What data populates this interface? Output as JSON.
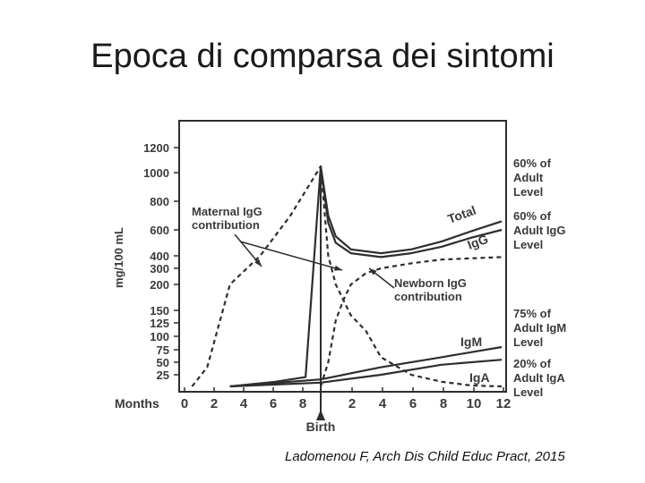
{
  "slide": {
    "title": "Epoca di comparsa dei sintomi",
    "citation": "Ladomenou F, Arch Dis Child Educ Pract, 2015"
  },
  "chart_data": {
    "type": "line",
    "title": "",
    "ylabel": "mg/100 mL",
    "xlabel": "Months",
    "y_ticks": [
      "1200",
      "1000",
      "800",
      "600",
      "400",
      "300",
      "200",
      "150",
      "125",
      "100",
      "75",
      "50",
      "25"
    ],
    "x_tick_labels_prenatal": [
      "0",
      "2",
      "4",
      "6",
      "8"
    ],
    "x_tick_labels_postnatal": [
      "2",
      "4",
      "6",
      "8",
      "10",
      "12"
    ],
    "birth_label": "Birth",
    "series": [
      {
        "name": "Total",
        "style": "solid",
        "points": [
          [
            -6,
            0
          ],
          [
            -3,
            10
          ],
          [
            -1,
            20
          ],
          [
            0,
            1050
          ],
          [
            0.5,
            700
          ],
          [
            1,
            550
          ],
          [
            2,
            450
          ],
          [
            4,
            420
          ],
          [
            6,
            450
          ],
          [
            8,
            510
          ],
          [
            10,
            590
          ],
          [
            12,
            660
          ]
        ]
      },
      {
        "name": "IgG",
        "style": "solid",
        "points": [
          [
            0,
            1050
          ],
          [
            0.5,
            650
          ],
          [
            1,
            500
          ],
          [
            2,
            420
          ],
          [
            4,
            390
          ],
          [
            6,
            420
          ],
          [
            8,
            470
          ],
          [
            10,
            540
          ],
          [
            12,
            600
          ]
        ]
      },
      {
        "name": "IgM",
        "style": "solid",
        "points": [
          [
            -6,
            0
          ],
          [
            0,
            15
          ],
          [
            4,
            40
          ],
          [
            8,
            60
          ],
          [
            12,
            80
          ]
        ]
      },
      {
        "name": "IgA",
        "style": "solid",
        "points": [
          [
            -6,
            0
          ],
          [
            0,
            8
          ],
          [
            4,
            25
          ],
          [
            8,
            45
          ],
          [
            12,
            55
          ]
        ]
      },
      {
        "name": "Maternal IgG contribution",
        "style": "dashed",
        "points": [
          [
            -8.5,
            0
          ],
          [
            -7.5,
            40
          ],
          [
            -6,
            200
          ],
          [
            -4,
            400
          ],
          [
            -2,
            700
          ],
          [
            0,
            1050
          ],
          [
            0.5,
            400
          ],
          [
            1,
            200
          ],
          [
            2,
            140
          ],
          [
            3,
            110
          ],
          [
            4,
            60
          ],
          [
            6,
            25
          ],
          [
            8,
            10
          ],
          [
            10,
            2
          ],
          [
            12,
            0
          ]
        ]
      },
      {
        "name": "Newborn IgG contribution",
        "style": "dashed",
        "points": [
          [
            0,
            0
          ],
          [
            0.5,
            50
          ],
          [
            1,
            130
          ],
          [
            1.5,
            170
          ],
          [
            2,
            200
          ],
          [
            3,
            270
          ],
          [
            4,
            300
          ],
          [
            6,
            340
          ],
          [
            8,
            370
          ],
          [
            10,
            380
          ],
          [
            12,
            390
          ]
        ]
      }
    ],
    "annotations": {
      "maternal": [
        "Maternal IgG",
        "contribution"
      ],
      "newborn": [
        "Newborn IgG",
        "contribution"
      ],
      "total_end": [
        "60% of",
        "Adult",
        "Level"
      ],
      "igg_end": [
        "60% of",
        "Adult IgG",
        "Level"
      ],
      "igm_end": [
        "75% of",
        "Adult IgM",
        "Level"
      ],
      "iga_end": [
        "20% of",
        "Adult IgA",
        "Level"
      ],
      "curve_total": "Total",
      "curve_igg": "IgG",
      "curve_igm": "IgM",
      "curve_iga": "IgA"
    }
  }
}
